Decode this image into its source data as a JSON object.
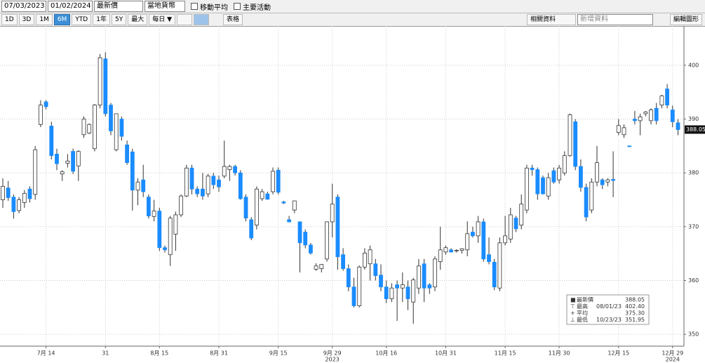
{
  "toolbar": {
    "start_date": "07/03/2023",
    "end_date": "01/02/2024",
    "field": "最新價",
    "currency": "當地貨幣",
    "options": [
      "移動平均",
      "主要活動"
    ],
    "ranges": [
      "1D",
      "3D",
      "1M",
      "6M",
      "YTD",
      "1年",
      "5Y",
      "最大"
    ],
    "active_range": 3,
    "frequency": "每日 ▼",
    "table": "表格",
    "related": "相關資料",
    "add_data": "新增資料",
    "edit": "編輯圖形"
  },
  "chart_data": {
    "type": "candlestick",
    "up_color": "#ffffff",
    "down_color": "#1a8cff",
    "outline_color": "#333333",
    "categories": [
      null,
      null,
      null,
      null,
      null,
      null,
      null,
      null,
      "7月 14",
      null,
      null,
      null,
      null,
      null,
      null,
      null,
      null,
      null,
      null,
      "31",
      null,
      null,
      null,
      null,
      null,
      null,
      null,
      null,
      null,
      "8月 15",
      null,
      null,
      null,
      null,
      null,
      null,
      null,
      null,
      null,
      null,
      "8月 31",
      null,
      null,
      null,
      null,
      null,
      null,
      null,
      null,
      null,
      null,
      "9月 15",
      null,
      null,
      null,
      null,
      null,
      null,
      null,
      null,
      null,
      "9月 29",
      null,
      null,
      null,
      null,
      null,
      null,
      null,
      null,
      null,
      "10月 16",
      null,
      null,
      null,
      null,
      null,
      null,
      null,
      null,
      null,
      null,
      "10月 31",
      null,
      null,
      null,
      null,
      null,
      null,
      null,
      null,
      null,
      null,
      "11月 15",
      null,
      null,
      null,
      null,
      null,
      null,
      null,
      null,
      null,
      "11月 30",
      null,
      null,
      null,
      null,
      null,
      null,
      null,
      null,
      null,
      null,
      "12月 15",
      null,
      null,
      null,
      null,
      null,
      null,
      null,
      null,
      null,
      "12月 29",
      null
    ],
    "year_labels": [
      {
        "category": 61,
        "label": "2023"
      },
      {
        "category": 124,
        "label": "2024"
      }
    ],
    "open": [
      375.0,
      377.2,
      375.5,
      373.0,
      374.5,
      377.0,
      376.0,
      389.0,
      393.2,
      388.7,
      383.5,
      379.8,
      381.8,
      384.0,
      381.3,
      387.1,
      387.4,
      384.5,
      392.6,
      401.2,
      392.6,
      384.3,
      390.0,
      385.2,
      383.9,
      376.8,
      378.7,
      375.5,
      371.9,
      372.9,
      366.1,
      364.8,
      368.6,
      372.2,
      375.7,
      380.9,
      377.0,
      377.0,
      376.1,
      379.4,
      378.7,
      379.4,
      380.6,
      381.2,
      380.0,
      375.5,
      371.3,
      370.3,
      375.2,
      376.1,
      376.5,
      380.5,
      374.6,
      371.3,
      373.1,
      370.9,
      369.0,
      366.6,
      362.1,
      362.2,
      364.0,
      370.9,
      375.5,
      364.8,
      362.2,
      358.8,
      355.3,
      362.5,
      363.1,
      363.1,
      361.0,
      358.8,
      356.6,
      359.2,
      358.6,
      358.8,
      356.0,
      358.6,
      363.1,
      359.2,
      358.8,
      363.5,
      365.3,
      365.7,
      365.5,
      365.6,
      365.7,
      369.0,
      368.3,
      370.9,
      364.8,
      363.4,
      358.6,
      367.0,
      367.7,
      371.6,
      370.3,
      373.1,
      380.9,
      380.6,
      379.1,
      375.7,
      380.4,
      378.7,
      380.0,
      383.2,
      389.5,
      381.2,
      377.3,
      373.1,
      378.3,
      378.7,
      378.3,
      378.8,
      387.5,
      387.1,
      385.0,
      390.0,
      389.7,
      391.0,
      389.7,
      392.0,
      392.6,
      395.6,
      391.7,
      389.3
    ],
    "high": [
      379.0,
      378.5,
      376.0,
      375.5,
      376.8,
      377.5,
      385.0,
      393.5,
      393.5,
      389.5,
      384.5,
      380.5,
      383.5,
      384.5,
      384.2,
      390.5,
      389.2,
      392.8,
      402.1,
      402.4,
      393.0,
      391.0,
      390.5,
      386.0,
      384.5,
      379.0,
      381.5,
      376.0,
      375.0,
      373.5,
      366.5,
      372.0,
      372.8,
      376.0,
      381.5,
      381.5,
      377.5,
      380.0,
      379.8,
      380.0,
      379.5,
      386.0,
      381.5,
      381.5,
      380.5,
      376.0,
      371.8,
      377.5,
      377.0,
      376.5,
      381.0,
      381.0,
      374.8,
      372.0,
      374.8,
      371.0,
      369.5,
      367.0,
      363.2,
      363.0,
      371.0,
      378.0,
      376.0,
      366.0,
      363.0,
      360.5,
      362.8,
      366.0,
      366.5,
      364.0,
      363.0,
      360.0,
      359.5,
      360.0,
      361.5,
      360.0,
      360.5,
      364.0,
      364.0,
      359.5,
      364.5,
      370.0,
      366.5,
      366.0,
      365.8,
      366.0,
      371.0,
      370.0,
      372.0,
      371.5,
      368.0,
      364.0,
      368.0,
      372.0,
      373.5,
      372.0,
      376.0,
      381.5,
      381.5,
      381.0,
      379.5,
      380.0,
      381.0,
      381.5,
      384.0,
      391.0,
      390.0,
      382.5,
      378.0,
      379.0,
      385.0,
      379.0,
      379.0,
      384.0,
      390.0,
      389.0,
      385.1,
      391.5,
      391.0,
      391.5,
      392.0,
      393.0,
      394.5,
      396.5,
      392.5,
      390.0
    ],
    "low": [
      373.5,
      374.8,
      371.5,
      372.5,
      373.5,
      374.5,
      375.0,
      388.5,
      391.8,
      382.5,
      380.5,
      378.5,
      381.0,
      379.8,
      378.5,
      386.5,
      387.2,
      384.0,
      392.0,
      390.5,
      387.0,
      384.0,
      386.0,
      381.5,
      373.0,
      374.0,
      375.5,
      371.5,
      371.0,
      365.5,
      365.2,
      362.7,
      365.5,
      371.8,
      375.5,
      376.0,
      375.5,
      375.0,
      375.5,
      377.0,
      376.5,
      379.0,
      378.5,
      379.5,
      375.0,
      371.0,
      367.5,
      369.5,
      374.8,
      375.0,
      376.0,
      376.0,
      374.2,
      370.8,
      372.5,
      361.5,
      366.0,
      364.8,
      361.8,
      361.5,
      363.5,
      368.0,
      362.0,
      361.8,
      358.0,
      355.0,
      355.0,
      362.0,
      360.0,
      360.0,
      358.0,
      355.8,
      356.0,
      352.5,
      356.0,
      354.5,
      351.95,
      357.5,
      356.0,
      357.5,
      358.0,
      362.0,
      364.8,
      365.2,
      365.2,
      365.0,
      364.5,
      368.0,
      367.0,
      363.5,
      363.0,
      358.2,
      358.0,
      366.5,
      367.0,
      369.0,
      369.5,
      372.5,
      379.5,
      375.0,
      376.0,
      375.0,
      378.0,
      378.0,
      379.5,
      383.0,
      380.5,
      376.5,
      371.0,
      372.5,
      377.5,
      377.0,
      377.5,
      375.5,
      387.0,
      386.5,
      384.9,
      389.0,
      387.0,
      390.5,
      389.0,
      389.0,
      392.0,
      392.0,
      388.5,
      387.0
    ],
    "close": [
      377.5,
      375.4,
      372.8,
      375.0,
      376.2,
      375.2,
      384.3,
      392.6,
      392.3,
      383.2,
      381.7,
      380.2,
      382.2,
      380.3,
      384.0,
      390.0,
      389.0,
      392.6,
      401.4,
      391.0,
      387.8,
      391.0,
      386.8,
      381.9,
      376.8,
      378.3,
      376.5,
      372.0,
      372.9,
      366.1,
      365.7,
      371.6,
      372.2,
      375.7,
      380.9,
      377.0,
      376.1,
      375.7,
      379.4,
      377.8,
      377.4,
      381.2,
      381.2,
      380.0,
      375.2,
      371.6,
      367.9,
      377.0,
      376.5,
      375.1,
      380.3,
      376.4,
      374.4,
      370.9,
      374.8,
      367.0,
      366.6,
      365.1,
      362.7,
      363.0,
      370.9,
      374.2,
      364.4,
      362.2,
      358.8,
      355.3,
      362.5,
      365.1,
      365.7,
      360.9,
      358.8,
      356.6,
      358.6,
      358.6,
      359.2,
      356.6,
      360.1,
      362.7,
      358.6,
      358.6,
      364.0,
      365.7,
      366.1,
      365.3,
      365.6,
      365.9,
      368.7,
      368.3,
      370.9,
      364.0,
      363.5,
      358.8,
      367.0,
      368.3,
      372.2,
      369.6,
      374.2,
      380.9,
      380.6,
      376.1,
      376.1,
      379.1,
      378.3,
      380.9,
      383.2,
      390.8,
      381.2,
      377.3,
      371.8,
      378.3,
      381.9,
      377.8,
      378.7,
      378.6,
      388.8,
      388.4,
      384.9,
      389.7,
      390.4,
      391.3,
      391.7,
      389.7,
      394.3,
      392.6,
      389.5,
      388.05
    ],
    "ylim": [
      347.8,
      407.3
    ],
    "yticks": [
      350,
      360,
      370,
      380,
      390,
      400
    ],
    "grid": true,
    "legend": [
      {
        "label": "最新價",
        "value": "388.05"
      },
      {
        "label": "最高",
        "date": "08/01/23",
        "value": "402.40"
      },
      {
        "label": "平均",
        "value": "375.30"
      },
      {
        "label": "最低",
        "date": "10/23/23",
        "value": "351.95"
      }
    ]
  }
}
